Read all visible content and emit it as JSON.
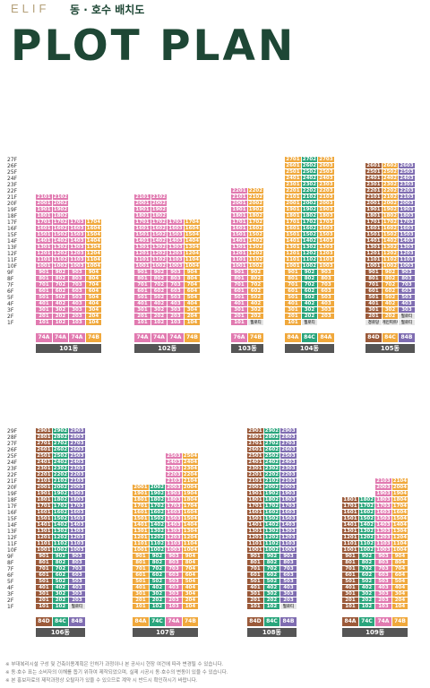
{
  "header": {
    "brand": "ELIF",
    "subtitle": "동 · 호수 배치도",
    "title": "PLOT PLAN"
  },
  "colors": {
    "pink": "#e17ab0",
    "orange": "#f0a83c",
    "green": "#2aa57c",
    "purple": "#7f6db1",
    "brown": "#9b5a3a",
    "gray": "#bbbbbb",
    "dark": "#555555"
  },
  "buildings": [
    {
      "name": "101동",
      "top": 21,
      "base": 1,
      "types": [
        [
          "74A",
          "pink"
        ],
        [
          "74A",
          "pink"
        ],
        [
          "74A",
          "pink"
        ],
        [
          "74B",
          "orange"
        ]
      ],
      "tops": [
        21,
        21,
        17,
        17
      ],
      "lowest": [
        1,
        1,
        1,
        1
      ],
      "special": []
    },
    {
      "name": "102동",
      "top": 21,
      "base": 1,
      "types": [
        [
          "74A",
          "pink"
        ],
        [
          "74A",
          "pink"
        ],
        [
          "74A",
          "pink"
        ],
        [
          "74B",
          "orange"
        ]
      ],
      "tops": [
        21,
        21,
        17,
        17
      ],
      "lowest": [
        1,
        1,
        1,
        1
      ],
      "special": []
    },
    {
      "name": "103동",
      "top": 22,
      "base": 1,
      "types": [
        [
          "76A",
          "pink"
        ],
        [
          "74B",
          "orange"
        ]
      ],
      "tops": [
        22,
        22
      ],
      "lowest": [
        1,
        2
      ],
      "special": [
        {
          "col": 1,
          "floor": 1,
          "text": "필로티"
        }
      ]
    },
    {
      "name": "104동",
      "top": 27,
      "base": 1,
      "types": [
        [
          "84A",
          "orange"
        ],
        [
          "84C",
          "green"
        ],
        [
          "84A",
          "orange"
        ]
      ],
      "tops": [
        27,
        27,
        27
      ],
      "lowest": [
        1,
        2,
        2
      ],
      "special": [
        {
          "col": 1,
          "floor": 1,
          "text": "필로티"
        }
      ]
    },
    {
      "name": "105동",
      "top": 26,
      "base": 1,
      "types": [
        [
          "84D",
          "brown"
        ],
        [
          "84C",
          "orange"
        ],
        [
          "84B",
          "purple"
        ]
      ],
      "tops": [
        26,
        26,
        26
      ],
      "lowest": [
        2,
        2,
        2
      ],
      "special": [
        {
          "col": 0,
          "floor": 1,
          "text": "경로당"
        },
        {
          "col": 1,
          "floor": 1,
          "text": "개인피트니스"
        },
        {
          "col": 2,
          "floor": 1,
          "text": "필로티"
        },
        {
          "col": 2,
          "floor": 2,
          "text": "필로티"
        }
      ]
    },
    {
      "name": "106동",
      "top": 29,
      "base": 1,
      "types": [
        [
          "84D",
          "brown"
        ],
        [
          "84C",
          "green"
        ],
        [
          "84B",
          "purple"
        ]
      ],
      "tops": [
        29,
        29,
        29
      ],
      "lowest": [
        1,
        1,
        2
      ],
      "special": [
        {
          "col": 2,
          "floor": 1,
          "text": "필로티"
        }
      ]
    },
    {
      "name": "107동",
      "top": 25,
      "base": 1,
      "types": [
        [
          "84A",
          "orange"
        ],
        [
          "74C",
          "green"
        ],
        [
          "74A",
          "pink"
        ],
        [
          "74B",
          "orange"
        ]
      ],
      "tops": [
        20,
        20,
        25,
        25
      ],
      "lowest": [
        1,
        1,
        1,
        1
      ],
      "special": []
    },
    {
      "name": "108동",
      "top": 29,
      "base": 1,
      "types": [
        [
          "84D",
          "brown"
        ],
        [
          "84C",
          "green"
        ],
        [
          "84B",
          "purple"
        ]
      ],
      "tops": [
        29,
        29,
        29
      ],
      "lowest": [
        1,
        1,
        2
      ],
      "special": [
        {
          "col": 2,
          "floor": 1,
          "text": "필로티"
        }
      ]
    },
    {
      "name": "109동",
      "top": 21,
      "base": 1,
      "types": [
        [
          "84A",
          "brown"
        ],
        [
          "74C",
          "green"
        ],
        [
          "74A",
          "pink"
        ],
        [
          "74B",
          "orange"
        ]
      ],
      "tops": [
        18,
        18,
        21,
        21
      ],
      "lowest": [
        1,
        1,
        1,
        1
      ],
      "special": []
    }
  ],
  "footnotes": [
    "※ 부대복리시설 구성 및 건축이용계획은 인허가 과정이나 본 공사시 현장 여건에 따라 변경될 수 있습니다.",
    "※ 동·호수 표는 소비자의 이해를 돕기 위하여 제작되었으며, 실제 시공시 동·호수의 변동이 있을 수 있습니다.",
    "※ 본 홍보자료의 제작과정상 오탈자가 있을 수 있으므로 계약 시 반드시 확인하시기 바랍니다."
  ]
}
